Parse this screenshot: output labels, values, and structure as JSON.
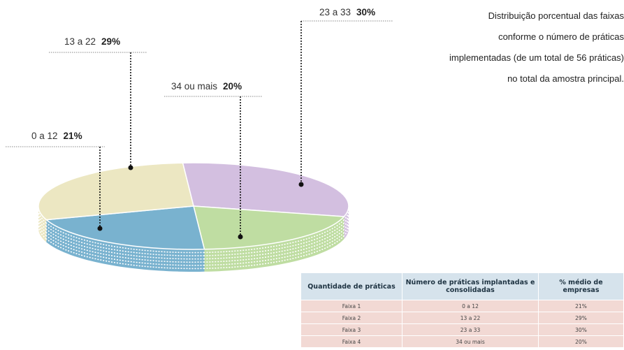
{
  "caption": {
    "lines": [
      "Distribuição porcentual das faixas",
      "conforme o número de práticas",
      "implementadas (de um total de 56 práticas)",
      "no total da amostra principal."
    ]
  },
  "chart_data": {
    "type": "pie",
    "slices": [
      {
        "label": "0 a 12",
        "value": 21,
        "display": "21%",
        "color": "#79b2cf"
      },
      {
        "label": "13 a 22",
        "value": 29,
        "display": "29%",
        "color": "#ece7c2"
      },
      {
        "label": "23 a 33",
        "value": 30,
        "display": "30%",
        "color": "#d3bfe0"
      },
      {
        "label": "34 ou mais",
        "value": 20,
        "display": "20%",
        "color": "#bfdda2"
      }
    ]
  },
  "table": {
    "headers": [
      "Quantidade de práticas",
      "Número de práticas implantadas e consolidadas",
      "% médio de empresas"
    ],
    "rows": [
      [
        "Faixa 1",
        "0 a 12",
        "21%"
      ],
      [
        "Faixa 2",
        "13 a 22",
        "29%"
      ],
      [
        "Faixa 3",
        "23 a 33",
        "30%"
      ],
      [
        "Faixa 4",
        "34 ou mais",
        "20%"
      ]
    ]
  }
}
